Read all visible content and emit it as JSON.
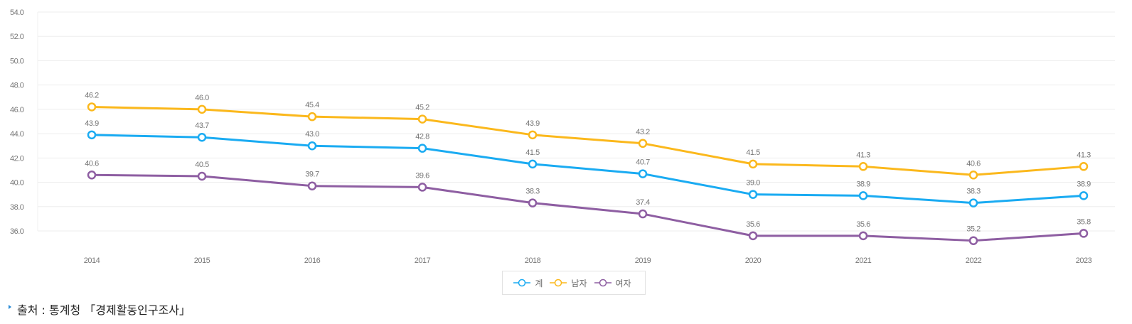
{
  "chart_data": {
    "type": "line",
    "title": "",
    "xlabel": "",
    "ylabel": "",
    "x": [
      "2014",
      "2015",
      "2016",
      "2017",
      "2018",
      "2019",
      "2020",
      "2021",
      "2022",
      "2023"
    ],
    "ylim": [
      36.0,
      54.0
    ],
    "yticks": [
      "36.0",
      "38.0",
      "40.0",
      "42.0",
      "44.0",
      "46.0",
      "48.0",
      "50.0",
      "52.0",
      "54.0"
    ],
    "grid": true,
    "legend_position": "bottom-center",
    "series": [
      {
        "name": "계",
        "color": "#1aabf2",
        "values": [
          43.9,
          43.7,
          43.0,
          42.8,
          41.5,
          40.7,
          39.0,
          38.9,
          38.3,
          38.9
        ],
        "labels": [
          "43.9",
          "43.7",
          "43.0",
          "42.8",
          "41.5",
          "40.7",
          "39.0",
          "38.9",
          "38.3",
          "38.9"
        ]
      },
      {
        "name": "남자",
        "color": "#fbb81c",
        "values": [
          46.2,
          46.0,
          45.4,
          45.2,
          43.9,
          43.2,
          41.5,
          41.3,
          40.6,
          41.3
        ],
        "labels": [
          "46.2",
          "46.0",
          "45.4",
          "45.2",
          "43.9",
          "43.2",
          "41.5",
          "41.3",
          "40.6",
          "41.3"
        ]
      },
      {
        "name": "여자",
        "color": "#8e5ea2",
        "values": [
          40.6,
          40.5,
          39.7,
          39.6,
          38.3,
          37.4,
          35.6,
          35.6,
          35.2,
          35.8
        ],
        "labels": [
          "40.6",
          "40.5",
          "39.7",
          "39.6",
          "38.3",
          "37.4",
          "35.6",
          "35.6",
          "35.2",
          "35.8"
        ]
      }
    ]
  },
  "legend": {
    "items": [
      {
        "label": "계",
        "color": "#1aabf2"
      },
      {
        "label": "남자",
        "color": "#fbb81c"
      },
      {
        "label": "여자",
        "color": "#8e5ea2"
      }
    ]
  },
  "source": {
    "text": "출처 : 통계청 「경제활동인구조사」"
  }
}
